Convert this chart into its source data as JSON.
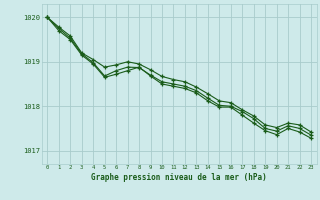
{
  "xlabel": "Graphe pression niveau de la mer (hPa)",
  "hours": [
    0,
    1,
    2,
    3,
    4,
    5,
    6,
    7,
    8,
    9,
    10,
    11,
    12,
    13,
    14,
    15,
    16,
    17,
    18,
    19,
    20,
    21,
    22,
    23
  ],
  "line1": [
    1020.0,
    1019.78,
    1019.58,
    1019.2,
    1019.05,
    1018.88,
    1018.93,
    1019.0,
    1018.95,
    1018.82,
    1018.67,
    1018.6,
    1018.55,
    1018.43,
    1018.28,
    1018.12,
    1018.08,
    1017.92,
    1017.78,
    1017.58,
    1017.52,
    1017.62,
    1017.58,
    1017.42
  ],
  "line2": [
    1020.0,
    1019.75,
    1019.53,
    1019.18,
    1018.98,
    1018.68,
    1018.8,
    1018.88,
    1018.87,
    1018.7,
    1018.55,
    1018.5,
    1018.45,
    1018.35,
    1018.18,
    1018.02,
    1018.0,
    1017.88,
    1017.72,
    1017.5,
    1017.44,
    1017.56,
    1017.5,
    1017.35
  ],
  "line3": [
    1020.0,
    1019.7,
    1019.5,
    1019.15,
    1018.95,
    1018.65,
    1018.72,
    1018.8,
    1018.88,
    1018.68,
    1018.5,
    1018.45,
    1018.4,
    1018.3,
    1018.12,
    1017.98,
    1017.98,
    1017.8,
    1017.62,
    1017.45,
    1017.36,
    1017.5,
    1017.42,
    1017.28
  ],
  "bg_color": "#ceeaea",
  "grid_color": "#a8cccc",
  "line_color": "#1a5c1a",
  "yticks": [
    1017,
    1018,
    1019,
    1020
  ],
  "ylim": [
    1016.7,
    1020.3
  ],
  "xlim": [
    -0.5,
    23.5
  ]
}
